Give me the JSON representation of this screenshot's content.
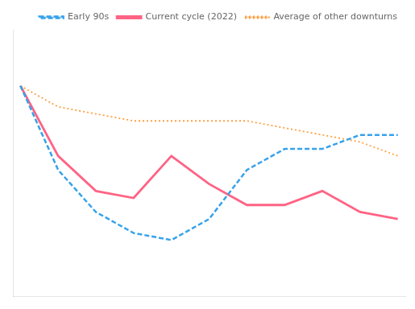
{
  "chart_data": {
    "type": "line",
    "x": [
      0,
      1,
      2,
      3,
      4,
      5,
      6,
      7,
      8,
      9,
      10
    ],
    "series": [
      {
        "name": "Early 90s",
        "values": [
          100,
          88,
          82,
          79,
          78,
          81,
          88,
          91,
          91,
          93,
          93
        ],
        "line_style": "dashed"
      },
      {
        "name": "Current cycle (2022)",
        "values": [
          100,
          90,
          85,
          84,
          90,
          86,
          83,
          83,
          85,
          82,
          81
        ],
        "line_style": "solid"
      },
      {
        "name": "Average of other downturns",
        "values": [
          100,
          97,
          96,
          95,
          95,
          95,
          95,
          94,
          93,
          92,
          90
        ],
        "line_style": "dotted"
      }
    ],
    "xlim": [
      -0.2,
      10.2
    ],
    "ylim": [
      70,
      108
    ],
    "grid": false,
    "legend": "upper right",
    "tick_labels": false
  }
}
